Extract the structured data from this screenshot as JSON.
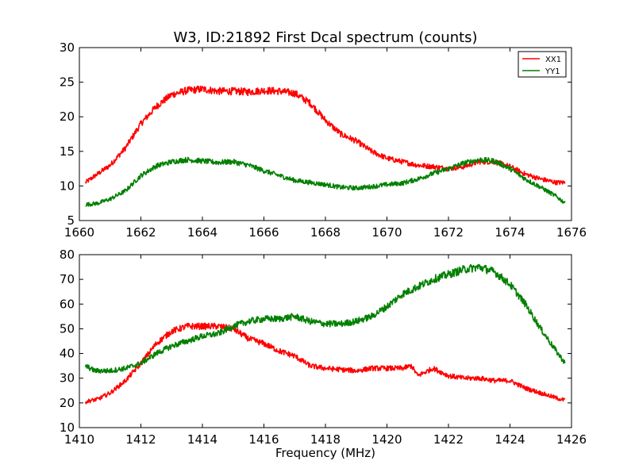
{
  "chart_data": [
    {
      "type": "line",
      "title": "W3, ID:21892 First Dcal spectrum (counts)",
      "xlabel": "",
      "ylabel": "",
      "xlim": [
        1660,
        1676
      ],
      "ylim": [
        5,
        30
      ],
      "xticks": [
        1660,
        1662,
        1664,
        1666,
        1668,
        1670,
        1672,
        1674,
        1676
      ],
      "yticks": [
        5,
        10,
        15,
        20,
        25,
        30
      ],
      "grid": false,
      "legend": "top-right",
      "colors": {
        "XX1": "#ff0000",
        "YY1": "#008000"
      },
      "series": [
        {
          "name": "XX1",
          "color": "#ff0000",
          "points": [
            [
              1660.2,
              10.5
            ],
            [
              1661,
              13
            ],
            [
              1661.5,
              15.5
            ],
            [
              1662,
              19
            ],
            [
              1662.5,
              21.5
            ],
            [
              1663,
              23.2
            ],
            [
              1663.5,
              23.8
            ],
            [
              1664,
              24
            ],
            [
              1664.5,
              23.7
            ],
            [
              1665,
              23.7
            ],
            [
              1665.5,
              23.6
            ],
            [
              1666,
              23.8
            ],
            [
              1666.5,
              23.7
            ],
            [
              1667,
              23.4
            ],
            [
              1667.5,
              22
            ],
            [
              1668,
              19.5
            ],
            [
              1668.5,
              17.5
            ],
            [
              1669,
              16.5
            ],
            [
              1669.5,
              15
            ],
            [
              1670,
              14
            ],
            [
              1670.5,
              13.5
            ],
            [
              1671,
              13
            ],
            [
              1671.5,
              12.8
            ],
            [
              1672,
              12.5
            ],
            [
              1672.5,
              12.8
            ],
            [
              1673,
              13.5
            ],
            [
              1673.5,
              13.5
            ],
            [
              1674,
              12.8
            ],
            [
              1674.5,
              11.7
            ],
            [
              1675,
              11
            ],
            [
              1675.5,
              10.5
            ],
            [
              1675.8,
              10.5
            ]
          ]
        },
        {
          "name": "YY1",
          "color": "#008000",
          "points": [
            [
              1660.2,
              7.3
            ],
            [
              1660.6,
              7.5
            ],
            [
              1661,
              8.1
            ],
            [
              1661.5,
              9.3
            ],
            [
              1662,
              11.5
            ],
            [
              1662.5,
              12.9
            ],
            [
              1663,
              13.5
            ],
            [
              1663.5,
              13.8
            ],
            [
              1664,
              13.6
            ],
            [
              1664.5,
              13.4
            ],
            [
              1665,
              13.5
            ],
            [
              1665.5,
              13
            ],
            [
              1666,
              12.2
            ],
            [
              1666.5,
              11.5
            ],
            [
              1667,
              10.8
            ],
            [
              1667.5,
              10.5
            ],
            [
              1668,
              10.2
            ],
            [
              1668.5,
              9.8
            ],
            [
              1669,
              9.7
            ],
            [
              1669.5,
              9.9
            ],
            [
              1670,
              10.2
            ],
            [
              1670.5,
              10.4
            ],
            [
              1671,
              11
            ],
            [
              1671.5,
              11.8
            ],
            [
              1672,
              12.5
            ],
            [
              1672.5,
              13.3
            ],
            [
              1673,
              13.8
            ],
            [
              1673.5,
              13.6
            ],
            [
              1674,
              12.5
            ],
            [
              1674.5,
              11
            ],
            [
              1675,
              9.8
            ],
            [
              1675.5,
              8.5
            ],
            [
              1675.8,
              7.5
            ]
          ]
        }
      ]
    },
    {
      "type": "line",
      "title": "",
      "xlabel": "Frequency (MHz)",
      "ylabel": "",
      "xlim": [
        1410,
        1426
      ],
      "ylim": [
        10,
        80
      ],
      "xticks": [
        1410,
        1412,
        1414,
        1416,
        1418,
        1420,
        1422,
        1424,
        1426
      ],
      "yticks": [
        10,
        20,
        30,
        40,
        50,
        60,
        70,
        80
      ],
      "grid": false,
      "legend": "none",
      "series": [
        {
          "name": "XX1",
          "color": "#ff0000",
          "points": [
            [
              1410.2,
              20.5
            ],
            [
              1410.6,
              21.5
            ],
            [
              1411,
              24
            ],
            [
              1411.5,
              29
            ],
            [
              1412,
              36
            ],
            [
              1412.5,
              44
            ],
            [
              1413,
              49
            ],
            [
              1413.5,
              51
            ],
            [
              1414,
              51
            ],
            [
              1414.5,
              51
            ],
            [
              1415,
              50
            ],
            [
              1415.5,
              46
            ],
            [
              1416,
              44
            ],
            [
              1416.5,
              41
            ],
            [
              1417,
              39
            ],
            [
              1417.5,
              35
            ],
            [
              1418,
              34
            ],
            [
              1418.5,
              33.5
            ],
            [
              1419,
              33
            ],
            [
              1419.5,
              34
            ],
            [
              1420,
              34
            ],
            [
              1420.5,
              34
            ],
            [
              1420.8,
              35
            ],
            [
              1421,
              31
            ],
            [
              1421.5,
              34
            ],
            [
              1422,
              31
            ],
            [
              1422.5,
              30
            ],
            [
              1423,
              30
            ],
            [
              1423.5,
              29
            ],
            [
              1424,
              29
            ],
            [
              1424.5,
              26
            ],
            [
              1425,
              24
            ],
            [
              1425.5,
              22
            ],
            [
              1425.8,
              21
            ]
          ]
        },
        {
          "name": "YY1",
          "color": "#008000",
          "points": [
            [
              1410.2,
              35
            ],
            [
              1410.5,
              33
            ],
            [
              1411,
              33
            ],
            [
              1411.5,
              34
            ],
            [
              1412,
              36
            ],
            [
              1412.5,
              40
            ],
            [
              1413,
              43
            ],
            [
              1413.5,
              45
            ],
            [
              1414,
              47
            ],
            [
              1414.5,
              48
            ],
            [
              1415,
              51
            ],
            [
              1415.5,
              53
            ],
            [
              1416,
              54
            ],
            [
              1416.5,
              54
            ],
            [
              1417,
              55
            ],
            [
              1417.5,
              53
            ],
            [
              1418,
              52
            ],
            [
              1418.5,
              52
            ],
            [
              1419,
              53
            ],
            [
              1419.5,
              55
            ],
            [
              1420,
              59
            ],
            [
              1420.5,
              64
            ],
            [
              1421,
              67
            ],
            [
              1421.5,
              70
            ],
            [
              1422,
              72
            ],
            [
              1422.5,
              74
            ],
            [
              1423,
              75
            ],
            [
              1423.5,
              73
            ],
            [
              1424,
              68
            ],
            [
              1424.5,
              60
            ],
            [
              1425,
              50
            ],
            [
              1425.5,
              41
            ],
            [
              1425.8,
              36
            ]
          ]
        }
      ]
    }
  ]
}
